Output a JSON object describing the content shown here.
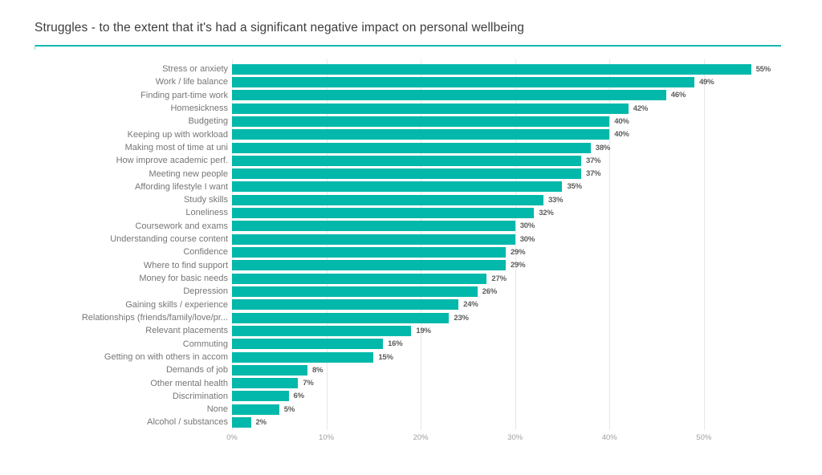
{
  "header": {
    "title": "Struggles - to the extent that it's had a significant negative impact on personal wellbeing"
  },
  "colors": {
    "bar": "#01b8aa",
    "title_text": "#3d3d3d",
    "title_underline": "#16b9ad",
    "category_label": "#767676",
    "value_label": "#5c5c5c",
    "axis_label": "#9f9f9f",
    "gridline": "#e7e7e7",
    "background": "#ffffff"
  },
  "chart_data": {
    "type": "bar",
    "orientation": "horizontal",
    "title": "Struggles - to the extent that it's had a significant negative impact on personal wellbeing",
    "categories": [
      "Stress or anxiety",
      "Work / life balance",
      "Finding part-time work",
      "Homesickness",
      "Budgeting",
      "Keeping up with workload",
      "Making most of time at uni",
      "How improve academic perf.",
      "Meeting new people",
      "Affording lifestyle I want",
      "Study skills",
      "Loneliness",
      "Coursework and exams",
      "Understanding course content",
      "Confidence",
      "Where to find support",
      "Money for basic needs",
      "Depression",
      "Gaining skills / experience",
      "Relationships (friends/family/love/pr...",
      "Relevant placements",
      "Commuting",
      "Getting on with others in accom",
      "Demands of job",
      "Other mental health",
      "Discrimination",
      "None",
      "Alcohol / substances"
    ],
    "values": [
      55,
      49,
      46,
      42,
      40,
      40,
      38,
      37,
      37,
      35,
      33,
      32,
      30,
      30,
      29,
      29,
      27,
      26,
      24,
      23,
      19,
      16,
      15,
      8,
      7,
      6,
      5,
      2
    ],
    "value_suffix": "%",
    "x_ticks": [
      0,
      10,
      20,
      30,
      40,
      50
    ],
    "x_tick_labels": [
      "0%",
      "10%",
      "20%",
      "30%",
      "40%",
      "50%"
    ],
    "xlim": [
      0,
      57.5
    ],
    "ylabel": "",
    "xlabel": "",
    "grid": "vertical",
    "legend": "none"
  }
}
